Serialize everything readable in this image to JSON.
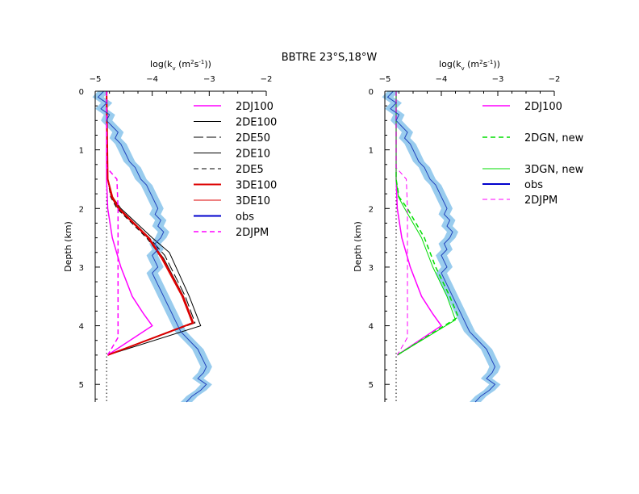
{
  "title": "BBTRE 23°S,18°W",
  "chart_data": [
    {
      "type": "line",
      "panel": "left",
      "xlabel": "log(k_v (m^2 s^-1))",
      "xlabel_parts": [
        "log(k",
        "v",
        " (m",
        "2",
        "s",
        "-1",
        "))"
      ],
      "ylabel": "Depth (km)",
      "xlim": [
        -5,
        -2
      ],
      "ylim": [
        0,
        5.3
      ],
      "xticks": [
        -5,
        -4,
        -3,
        -2
      ],
      "xtick_labels": [
        "−5",
        "−4",
        "−3",
        "−2"
      ],
      "yticks": [
        0,
        1,
        2,
        3,
        4,
        5
      ],
      "ytick_labels": [
        "0",
        "1",
        "2",
        "3",
        "4",
        "5"
      ],
      "background_level": -4.8,
      "obs_band_halfwidth": 0.1,
      "obs": {
        "depth": [
          0,
          0.1,
          0.2,
          0.3,
          0.4,
          0.5,
          0.6,
          0.7,
          0.8,
          0.9,
          1.0,
          1.1,
          1.2,
          1.3,
          1.4,
          1.5,
          1.6,
          1.7,
          1.8,
          1.9,
          2.0,
          2.1,
          2.2,
          2.3,
          2.4,
          2.5,
          2.6,
          2.7,
          2.8,
          2.9,
          3.0,
          3.1,
          3.2,
          3.3,
          3.4,
          3.5,
          3.6,
          3.7,
          3.8,
          3.9,
          4.0,
          4.1,
          4.2,
          4.3,
          4.4,
          4.5,
          4.6,
          4.7,
          4.8,
          4.9,
          5.0,
          5.1,
          5.2,
          5.3
        ],
        "logk": [
          -4.85,
          -4.95,
          -4.8,
          -4.9,
          -4.75,
          -4.8,
          -4.7,
          -4.6,
          -4.65,
          -4.55,
          -4.5,
          -4.45,
          -4.4,
          -4.3,
          -4.25,
          -4.2,
          -4.1,
          -4.05,
          -4.0,
          -3.95,
          -3.9,
          -3.95,
          -3.85,
          -3.9,
          -3.8,
          -3.85,
          -3.95,
          -3.9,
          -4.0,
          -3.95,
          -3.9,
          -4.0,
          -3.95,
          -3.9,
          -3.85,
          -3.8,
          -3.75,
          -3.7,
          -3.65,
          -3.6,
          -3.55,
          -3.5,
          -3.4,
          -3.3,
          -3.2,
          -3.15,
          -3.1,
          -3.05,
          -3.1,
          -3.2,
          -3.05,
          -3.15,
          -3.3,
          -3.4
        ]
      },
      "series": [
        {
          "name": "2DJ100",
          "style": "solid",
          "color": "#ff00ff",
          "width": 1.5,
          "depth": [
            0,
            1.5,
            2.0,
            2.5,
            3.0,
            3.5,
            3.8,
            4.0,
            4.5
          ],
          "logk": [
            -4.8,
            -4.8,
            -4.78,
            -4.7,
            -4.55,
            -4.35,
            -4.15,
            -4.0,
            -4.78
          ]
        },
        {
          "name": "2DE100",
          "style": "solid",
          "color": "#000000",
          "width": 1,
          "depth": [
            0,
            1.5,
            1.8,
            2.0,
            2.5,
            2.75,
            3.5,
            4.0,
            4.5
          ],
          "logk": [
            -4.8,
            -4.78,
            -4.7,
            -4.55,
            -4.0,
            -3.7,
            -3.35,
            -3.15,
            -4.78
          ]
        },
        {
          "name": "2DE50",
          "style": "longdash",
          "color": "#000000",
          "width": 1,
          "depth": [
            0,
            1.5,
            1.8,
            2.0,
            2.5,
            2.8,
            3.5,
            3.95,
            4.5
          ],
          "logk": [
            -4.8,
            -4.78,
            -4.72,
            -4.58,
            -4.05,
            -3.78,
            -3.42,
            -3.25,
            -4.78
          ]
        },
        {
          "name": "2DE10",
          "style": "solid",
          "color": "#000000",
          "width": 1,
          "depth": [
            0,
            1.5,
            1.8,
            2.0,
            2.5,
            2.85,
            3.5,
            3.95,
            4.5
          ],
          "logk": [
            -4.8,
            -4.78,
            -4.72,
            -4.6,
            -4.08,
            -3.8,
            -3.45,
            -3.28,
            -4.78
          ]
        },
        {
          "name": "2DE5",
          "style": "dash",
          "color": "#000000",
          "width": 1,
          "depth": [
            0,
            1.5,
            1.8,
            2.0,
            2.5,
            2.85,
            3.5,
            3.95,
            4.5
          ],
          "logk": [
            -4.8,
            -4.78,
            -4.73,
            -4.62,
            -4.1,
            -3.82,
            -3.47,
            -3.3,
            -4.78
          ]
        },
        {
          "name": "3DE100",
          "style": "solid",
          "color": "#dd0000",
          "width": 2,
          "depth": [
            0,
            1.5,
            1.8,
            2.0,
            2.5,
            2.85,
            3.5,
            3.95,
            4.5
          ],
          "logk": [
            -4.8,
            -4.78,
            -4.7,
            -4.58,
            -4.06,
            -3.82,
            -3.46,
            -3.28,
            -4.78
          ]
        },
        {
          "name": "3DE10",
          "style": "solid",
          "color": "#dd0000",
          "width": 1,
          "depth": [
            0,
            1.5,
            1.8,
            2.0,
            2.5,
            2.85,
            3.5,
            3.95,
            4.5
          ],
          "logk": [
            -4.8,
            -4.78,
            -4.72,
            -4.6,
            -4.08,
            -3.84,
            -3.48,
            -3.3,
            -4.78
          ]
        },
        {
          "name": "obs",
          "style": "solid",
          "color": "#0000cc",
          "width": 2,
          "legend_only": true
        },
        {
          "name": "2DJPM",
          "style": "dash",
          "color": "#ff00ff",
          "width": 1.5,
          "depth": [
            0,
            1.3,
            1.5,
            2.0,
            3.0,
            3.5,
            4.0,
            4.2,
            4.5
          ],
          "logk": [
            -4.8,
            -4.8,
            -4.62,
            -4.6,
            -4.6,
            -4.6,
            -4.6,
            -4.6,
            -4.78
          ]
        }
      ]
    },
    {
      "type": "line",
      "panel": "right",
      "xlabel": "log(k_v (m^2 s^-1))",
      "xlabel_parts": [
        "log(k",
        "v",
        " (m",
        "2",
        "s",
        "-1",
        "))"
      ],
      "ylabel": "Depth (km)",
      "xlim": [
        -5,
        -2
      ],
      "ylim": [
        0,
        5.3
      ],
      "xticks": [
        -5,
        -4,
        -3,
        -2
      ],
      "xtick_labels": [
        "−5",
        "−4",
        "−3",
        "−2"
      ],
      "yticks": [
        0,
        1,
        2,
        3,
        4,
        5
      ],
      "ytick_labels": [
        "0",
        "1",
        "2",
        "3",
        "4",
        "5"
      ],
      "background_level": -4.8,
      "obs_band_halfwidth": 0.1,
      "obs": {
        "depth": [
          0,
          0.1,
          0.2,
          0.3,
          0.4,
          0.5,
          0.6,
          0.7,
          0.8,
          0.9,
          1.0,
          1.1,
          1.2,
          1.3,
          1.4,
          1.5,
          1.6,
          1.7,
          1.8,
          1.9,
          2.0,
          2.1,
          2.2,
          2.3,
          2.4,
          2.5,
          2.6,
          2.7,
          2.8,
          2.9,
          3.0,
          3.1,
          3.2,
          3.3,
          3.4,
          3.5,
          3.6,
          3.7,
          3.8,
          3.9,
          4.0,
          4.1,
          4.2,
          4.3,
          4.4,
          4.5,
          4.6,
          4.7,
          4.8,
          4.9,
          5.0,
          5.1,
          5.2,
          5.3
        ],
        "logk": [
          -4.85,
          -4.95,
          -4.8,
          -4.9,
          -4.75,
          -4.8,
          -4.7,
          -4.6,
          -4.65,
          -4.55,
          -4.5,
          -4.45,
          -4.4,
          -4.3,
          -4.25,
          -4.2,
          -4.1,
          -4.05,
          -4.0,
          -3.95,
          -3.9,
          -3.95,
          -3.85,
          -3.9,
          -3.8,
          -3.85,
          -3.95,
          -3.9,
          -4.0,
          -3.95,
          -3.9,
          -4.0,
          -3.95,
          -3.9,
          -3.85,
          -3.8,
          -3.75,
          -3.7,
          -3.65,
          -3.6,
          -3.55,
          -3.5,
          -3.4,
          -3.3,
          -3.2,
          -3.15,
          -3.1,
          -3.05,
          -3.1,
          -3.2,
          -3.05,
          -3.15,
          -3.3,
          -3.4
        ]
      },
      "series": [
        {
          "name": "2DJ100",
          "style": "solid",
          "color": "#ff00ff",
          "width": 1.5,
          "depth": [
            0,
            1.5,
            2.0,
            2.5,
            3.0,
            3.5,
            3.8,
            4.0,
            4.5
          ],
          "logk": [
            -4.8,
            -4.8,
            -4.78,
            -4.7,
            -4.55,
            -4.35,
            -4.15,
            -4.0,
            -4.78
          ]
        },
        {
          "name": "2DGN, new",
          "style": "dash",
          "color": "#00dd00",
          "width": 1.5,
          "depth": [
            0,
            1.5,
            1.8,
            2.0,
            2.5,
            3.0,
            3.5,
            3.85,
            4.5
          ],
          "logk": [
            -4.8,
            -4.8,
            -4.75,
            -4.6,
            -4.3,
            -4.1,
            -3.85,
            -3.7,
            -4.78
          ]
        },
        {
          "name": "3DGN, new",
          "style": "solid",
          "color": "#00dd00",
          "width": 1,
          "depth": [
            0,
            1.5,
            1.8,
            2.0,
            2.5,
            3.0,
            3.5,
            3.9,
            4.5
          ],
          "logk": [
            -4.8,
            -4.8,
            -4.76,
            -4.65,
            -4.35,
            -4.15,
            -3.9,
            -3.75,
            -4.78
          ]
        },
        {
          "name": "obs",
          "style": "solid",
          "color": "#0000cc",
          "width": 2,
          "legend_only": true
        },
        {
          "name": "2DJPM",
          "style": "dash",
          "color": "#ff00ff",
          "width": 1,
          "depth": [
            0,
            1.3,
            1.5,
            2.0,
            3.0,
            3.5,
            4.0,
            4.2,
            4.5
          ],
          "logk": [
            -4.8,
            -4.8,
            -4.62,
            -4.6,
            -4.6,
            -4.6,
            -4.6,
            -4.6,
            -4.78
          ]
        }
      ]
    }
  ]
}
